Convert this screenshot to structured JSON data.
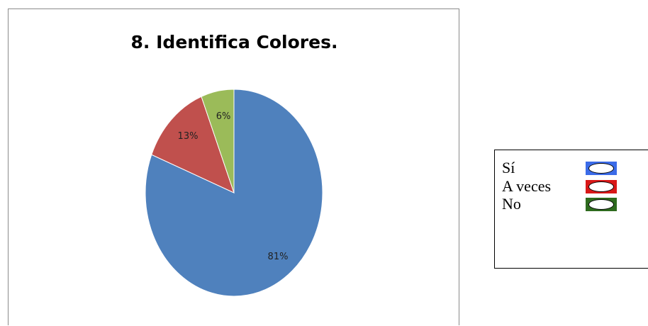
{
  "chart_data": {
    "type": "pie",
    "title": "8. Identifica Colores.",
    "slices": [
      {
        "value": 81,
        "label": "81%",
        "color": "#4f81bd"
      },
      {
        "value": 13,
        "label": "13%",
        "color": "#c0504d"
      },
      {
        "value": 6,
        "label": "6%",
        "color": "#9bbb59"
      }
    ]
  },
  "legend": {
    "items": [
      {
        "label": "Sí",
        "color": "#3b6be8"
      },
      {
        "label": "A veces",
        "color": "#d81818"
      },
      {
        "label": "No",
        "color": "#2e6b1e"
      }
    ]
  }
}
